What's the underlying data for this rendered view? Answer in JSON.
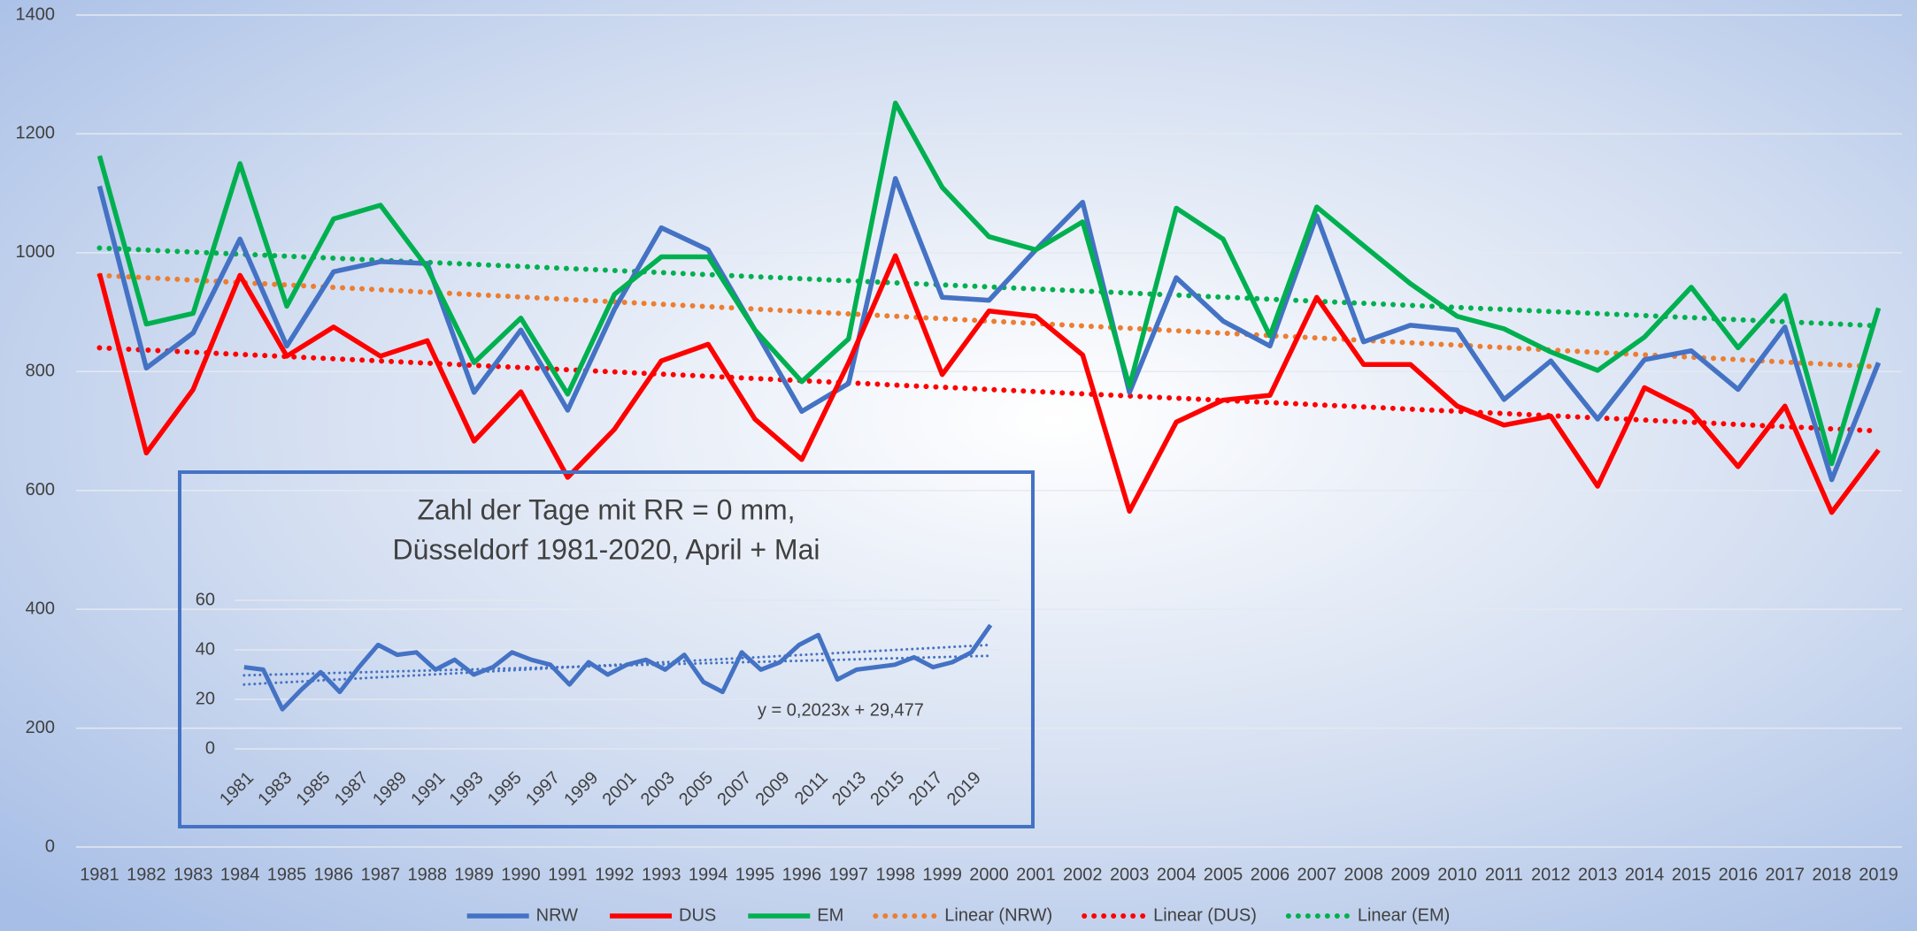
{
  "chart_data": [
    {
      "type": "line",
      "categories": [
        "1981",
        "1982",
        "1983",
        "1984",
        "1985",
        "1986",
        "1987",
        "1988",
        "1989",
        "1990",
        "1991",
        "1992",
        "1993",
        "1994",
        "1995",
        "1996",
        "1997",
        "1998",
        "1999",
        "2000",
        "2001",
        "2002",
        "2003",
        "2004",
        "2005",
        "2006",
        "2007",
        "2008",
        "2009",
        "2010",
        "2011",
        "2012",
        "2013",
        "2014",
        "2015",
        "2016",
        "2017",
        "2018",
        "2019"
      ],
      "series": [
        {
          "name": "NRW",
          "color": "#4472c4",
          "values": [
            1112,
            806,
            865,
            1023,
            843,
            968,
            985,
            982,
            765,
            870,
            735,
            905,
            1042,
            1005,
            870,
            733,
            780,
            1125,
            925,
            920,
            1005,
            1085,
            765,
            958,
            885,
            843,
            1062,
            850,
            878,
            870,
            753,
            818,
            720,
            820,
            835,
            770,
            875,
            618,
            815
          ]
        },
        {
          "name": "DUS",
          "color": "#ff0000",
          "values": [
            965,
            663,
            770,
            962,
            826,
            875,
            826,
            852,
            683,
            766,
            622,
            703,
            818,
            846,
            720,
            652,
            815,
            995,
            795,
            902,
            893,
            828,
            565,
            715,
            752,
            760,
            925,
            812,
            812,
            742,
            710,
            725,
            607,
            773,
            733,
            640,
            742,
            563,
            668
          ]
        },
        {
          "name": "EM",
          "color": "#00b050",
          "values": [
            1163,
            880,
            898,
            1150,
            910,
            1057,
            1080,
            975,
            815,
            890,
            762,
            930,
            993,
            993,
            870,
            783,
            855,
            1252,
            1110,
            1027,
            1005,
            1052,
            775,
            1075,
            1023,
            860,
            1077,
            1012,
            948,
            893,
            872,
            833,
            802,
            858,
            942,
            840,
            928,
            645,
            907
          ]
        }
      ],
      "trends": [
        {
          "name": "Linear (NRW)",
          "color": "#ed7d31",
          "values": [
            962,
            808
          ]
        },
        {
          "name": "Linear (DUS)",
          "color": "#ff0000",
          "values": [
            840,
            700
          ]
        },
        {
          "name": "Linear (EM)",
          "color": "#00b050",
          "values": [
            1008,
            877
          ]
        }
      ],
      "ylim": [
        0,
        1400
      ],
      "yticks": [
        0,
        200,
        400,
        600,
        800,
        1000,
        1200,
        1400
      ],
      "grid": true,
      "legend": "bottom"
    },
    {
      "type": "line",
      "title": [
        "Zahl der Tage mit RR = 0 mm,",
        "Düsseldorf 1981-2020, April + Mai"
      ],
      "categories": [
        "1981",
        null,
        "1983",
        null,
        "1985",
        null,
        "1987",
        null,
        "1989",
        null,
        "1991",
        null,
        "1993",
        null,
        "1995",
        null,
        "1997",
        null,
        "1999",
        null,
        "2001",
        null,
        "2003",
        null,
        "2005",
        null,
        "2007",
        null,
        "2009",
        null,
        "2011",
        null,
        "2013",
        null,
        "2015",
        null,
        "2017",
        null,
        "2019",
        null
      ],
      "series": [
        {
          "color": "#4472c4",
          "values": [
            33,
            32,
            16,
            24,
            31,
            23,
            33,
            42,
            38,
            39,
            32,
            36,
            30,
            33,
            39,
            36,
            34,
            26,
            35,
            30,
            34,
            36,
            32,
            38,
            27,
            23,
            39,
            32,
            35,
            42,
            46,
            28,
            32,
            33,
            34,
            37,
            33,
            35,
            39,
            50
          ]
        }
      ],
      "trends": [
        {
          "color": "#4472c4",
          "values": [
            29.7,
            37.6
          ]
        },
        {
          "color": "#4472c4",
          "values": [
            26,
            42
          ]
        }
      ],
      "annotation": "y = 0,2023x + 29,477",
      "ylim": [
        0,
        60
      ],
      "yticks": [
        0,
        20,
        40,
        60
      ],
      "grid": true
    }
  ]
}
